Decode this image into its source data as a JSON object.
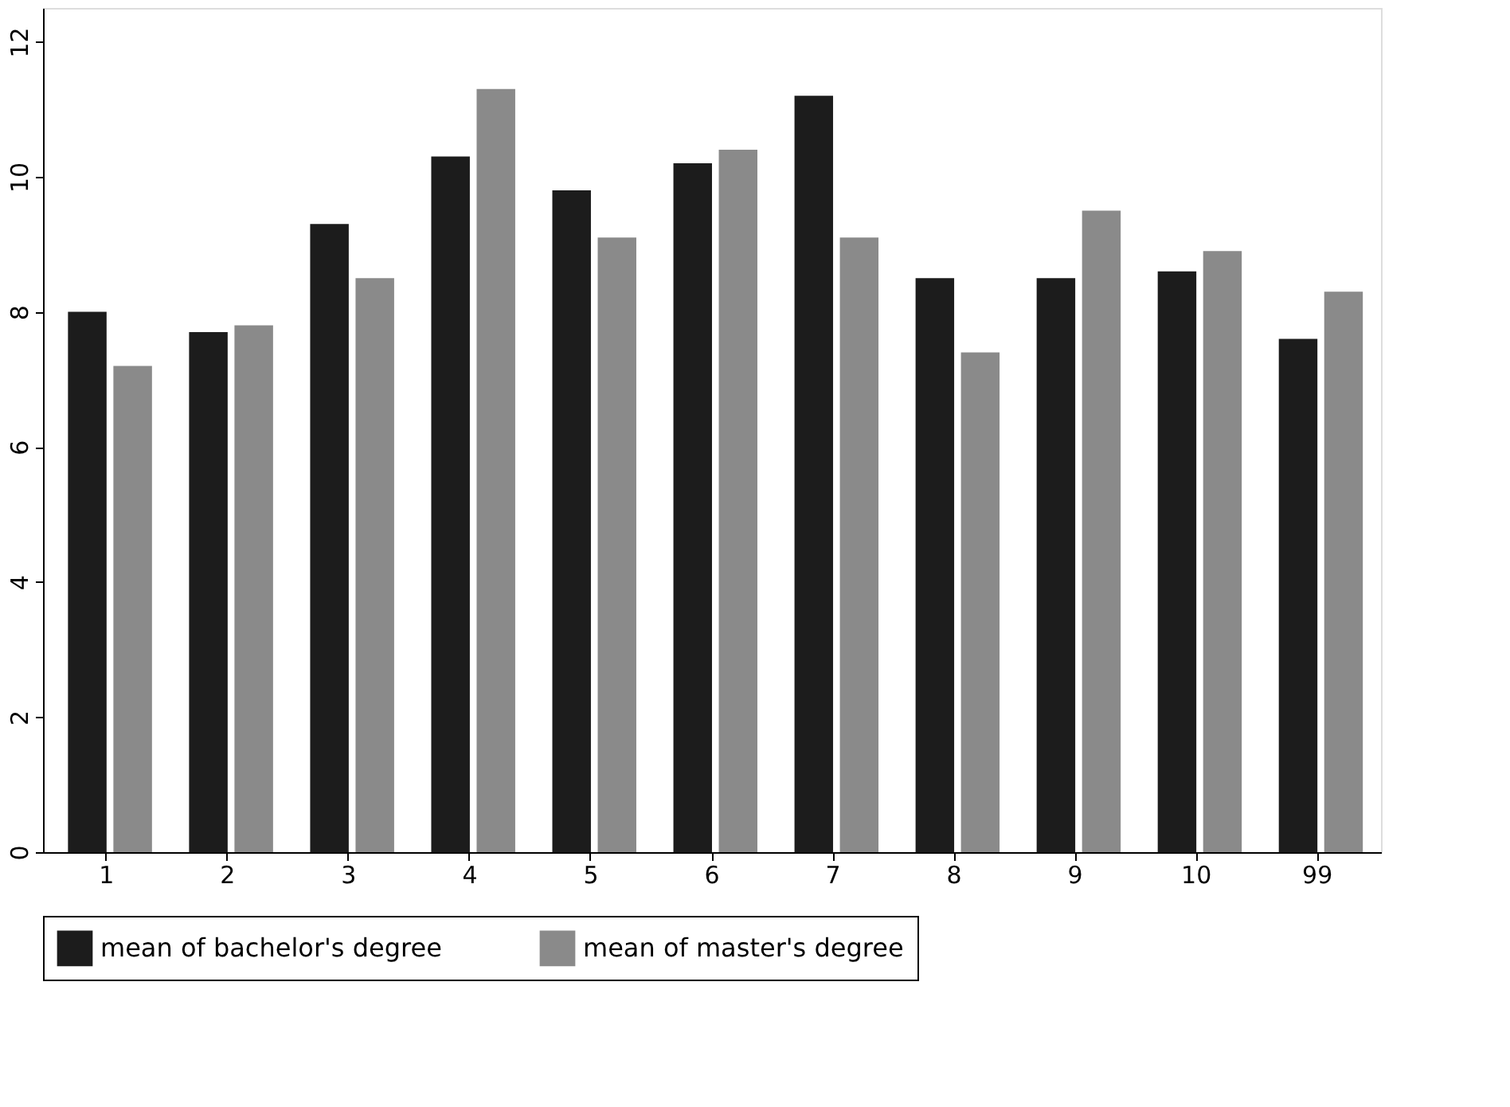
{
  "chart_data": {
    "type": "bar",
    "categories": [
      "1",
      "2",
      "3",
      "4",
      "5",
      "6",
      "7",
      "8",
      "9",
      "10",
      "99"
    ],
    "series": [
      {
        "name": "mean of bachelor's degree",
        "color": "#1c1c1c",
        "values": [
          8.0,
          7.7,
          9.3,
          10.3,
          9.8,
          10.2,
          11.2,
          8.5,
          8.5,
          8.6,
          7.6
        ]
      },
      {
        "name": "mean of master's degree",
        "color": "#8a8a8a",
        "values": [
          7.2,
          7.8,
          8.5,
          11.3,
          9.1,
          10.4,
          9.1,
          7.4,
          9.5,
          8.9,
          8.3
        ]
      }
    ],
    "ylim": [
      0,
      12.5
    ],
    "yticks": [
      0,
      2,
      4,
      6,
      8,
      10,
      12
    ],
    "grid": false,
    "legend": "bottom"
  }
}
